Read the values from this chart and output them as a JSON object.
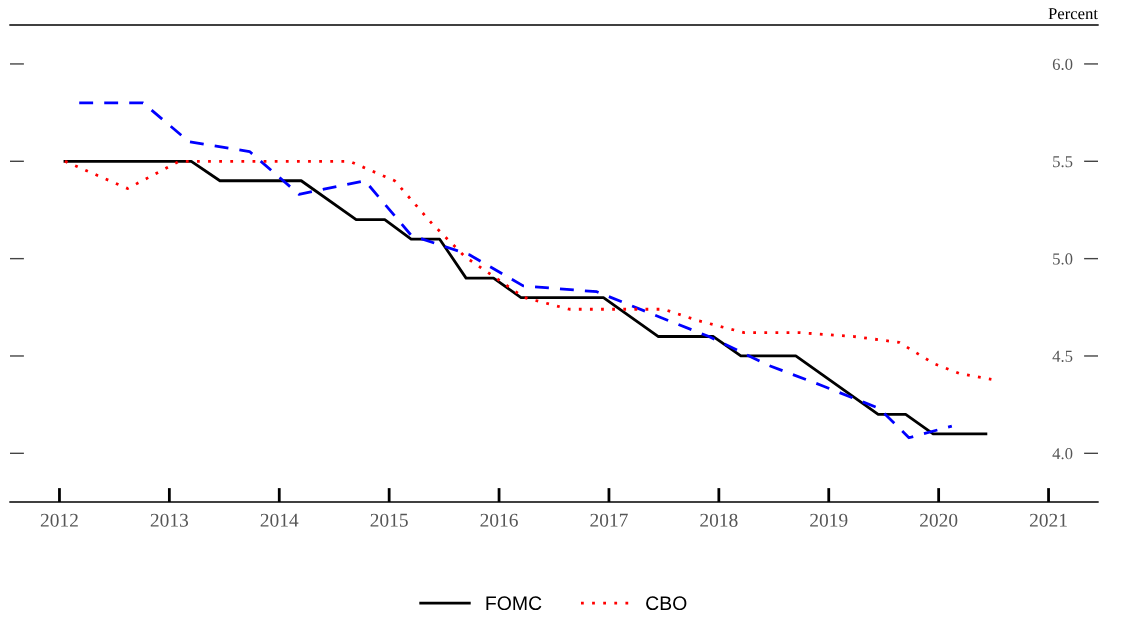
{
  "chart_data": {
    "type": "line",
    "ylabel": "Percent",
    "xlim": [
      2011.55,
      2021.45
    ],
    "ylim": [
      3.75,
      6.2
    ],
    "xticks": [
      2012,
      2013,
      2014,
      2015,
      2016,
      2017,
      2018,
      2019,
      2020,
      2021
    ],
    "yticks": [
      {
        "value": 4,
        "label": "4.0"
      },
      4.5,
      {
        "value": 5,
        "label": "5.0"
      },
      5.5,
      {
        "value": 6,
        "label": "6.0"
      }
    ],
    "grid": false,
    "legend": "bottom",
    "marker": "none",
    "series": [
      {
        "name": "FOMC",
        "color": "#000000",
        "line_style": "solid",
        "x": [
          2012.05,
          2013.2,
          2013.46,
          2014.2,
          2014.7,
          2014.96,
          2015.2,
          2015.46,
          2015.7,
          2015.95,
          2016.2,
          2016.95,
          2017.45,
          2017.95,
          2018.2,
          2018.7,
          2018.95,
          2019.45,
          2019.7,
          2019.95,
          2020.43
        ],
        "values": [
          5.5,
          5.5,
          5.4,
          5.4,
          5.2,
          5.2,
          5.1,
          5.1,
          4.9,
          4.9,
          4.8,
          4.8,
          4.6,
          4.6,
          4.5,
          4.5,
          4.4,
          4.2,
          4.2,
          4.1,
          4.1
        ]
      },
      {
        "color": "#0000ff",
        "line_style": "dashed",
        "x": [
          2012.18,
          2012.76,
          2013.18,
          2013.73,
          2014.18,
          2014.78,
          2015.2,
          2015.73,
          2016.22,
          2016.89,
          2017.46,
          2017.91,
          2018.46,
          2018.93,
          2019.46,
          2019.73,
          2020.12
        ],
        "values": [
          5.8,
          5.8,
          5.6,
          5.55,
          5.33,
          5.4,
          5.12,
          5.02,
          4.86,
          4.83,
          4.7,
          4.6,
          4.45,
          4.35,
          4.23,
          4.08,
          4.14
        ]
      },
      {
        "name": "CBO",
        "color": "#ff0000",
        "line_style": "dotted",
        "x": [
          2012.05,
          2012.62,
          2013.09,
          2014.64,
          2015.05,
          2015.39,
          2015.69,
          2016.23,
          2016.64,
          2017.19,
          2017.5,
          2017.82,
          2018.23,
          2018.73,
          2019.23,
          2019.64,
          2019.96,
          2020.19,
          2020.48
        ],
        "values": [
          5.5,
          5.36,
          5.5,
          5.5,
          5.4,
          5.18,
          5.01,
          4.8,
          4.74,
          4.74,
          4.74,
          4.68,
          4.62,
          4.62,
          4.6,
          4.57,
          4.46,
          4.41,
          4.38
        ]
      }
    ]
  }
}
